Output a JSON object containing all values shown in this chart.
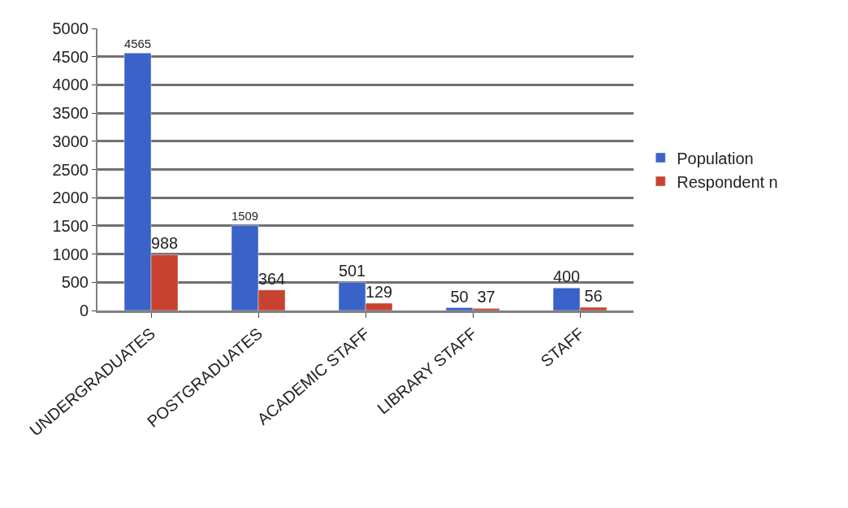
{
  "chart_data": {
    "type": "bar",
    "categories": [
      "UNDERGRADUATES",
      "POSTGRADUATES",
      "ACADEMIC STAFF",
      "LIBRARY STAFF",
      "STAFF"
    ],
    "series": [
      {
        "name": "Population",
        "color": "#3b62c8",
        "values": [
          4565,
          1509,
          501,
          50,
          400
        ]
      },
      {
        "name": "Respondent n",
        "color": "#c8432f",
        "values": [
          988,
          364,
          129,
          37,
          56
        ]
      }
    ],
    "ylim": [
      0,
      5000
    ],
    "yticks": [
      0,
      500,
      1000,
      1500,
      2000,
      2500,
      3000,
      3500,
      4000,
      4500,
      5000
    ],
    "grid": "y",
    "legend": "right",
    "data_labels": true
  }
}
